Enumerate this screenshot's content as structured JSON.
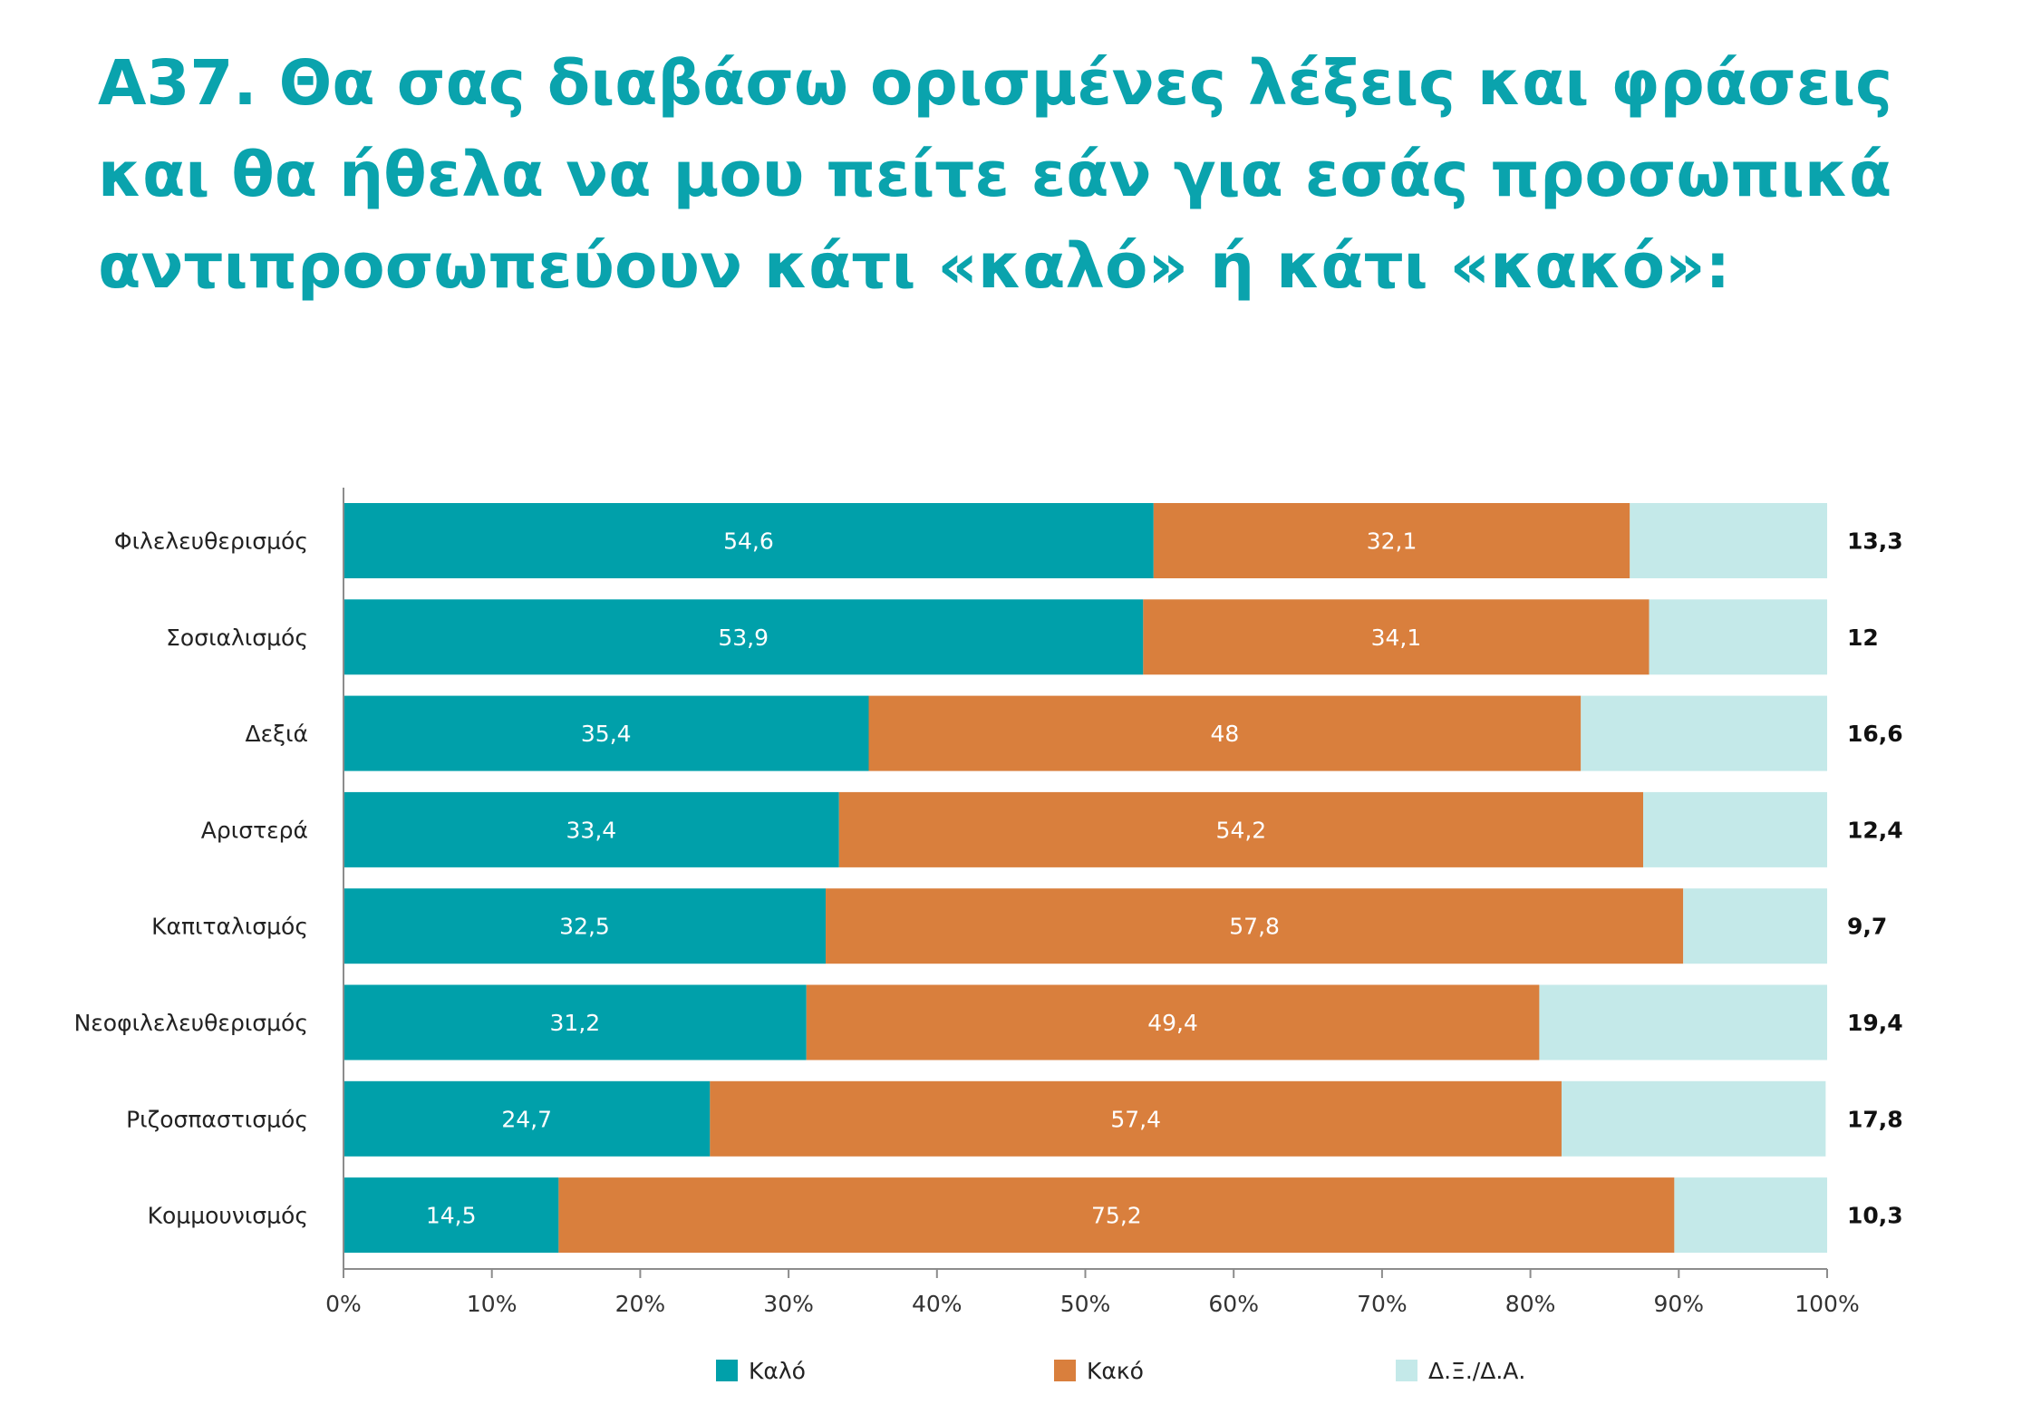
{
  "title_lines": [
    "Α37. Θα σας διαβάσω ορισμένες λέξεις και φράσεις",
    "και θα ήθελα να μου πείτε εάν για εσάς προσωπικά",
    "αντιπροσωπεύουν κάτι «καλό» ή κάτι «κακό»:"
  ],
  "colors": {
    "title": "#0aa3ad",
    "good": "#00a0aa",
    "bad": "#d97f3d",
    "dk": "#c4e9e9"
  },
  "chart_data": {
    "type": "bar",
    "orientation": "horizontal",
    "stacked": true,
    "categories": [
      "Φιλελευθερισμός",
      "Σοσιαλισμός",
      "Δεξιά",
      "Αριστερά",
      "Καπιταλισμός",
      "Νεοφιλελευθερισμός",
      "Ριζοσπαστισμός",
      "Κομμουνισμός"
    ],
    "series": [
      {
        "name": "Καλό",
        "values": [
          54.6,
          53.9,
          35.4,
          33.4,
          32.5,
          31.2,
          24.7,
          14.5
        ],
        "labels": [
          "54,6",
          "53,9",
          "35,4",
          "33,4",
          "32,5",
          "31,2",
          "24,7",
          "14,5"
        ],
        "color": "#00a0aa"
      },
      {
        "name": "Κακό",
        "values": [
          32.1,
          34.1,
          48,
          54.2,
          57.8,
          49.4,
          57.4,
          75.2
        ],
        "labels": [
          "32,1",
          "34,1",
          "48",
          "54,2",
          "57,8",
          "49,4",
          "57,4",
          "75,2"
        ],
        "color": "#d97f3d"
      },
      {
        "name": "Δ.Ξ./Δ.Α.",
        "values": [
          13.3,
          12,
          16.6,
          12.4,
          9.7,
          19.4,
          17.8,
          10.3
        ],
        "labels": [
          "13,3",
          "12",
          "16,6",
          "12,4",
          "9,7",
          "19,4",
          "17,8",
          "10,3"
        ],
        "color": "#c4e9e9"
      }
    ],
    "xlim": [
      0,
      100
    ],
    "xticks": [
      "0%",
      "10%",
      "20%",
      "30%",
      "40%",
      "50%",
      "60%",
      "70%",
      "80%",
      "90%",
      "100%"
    ],
    "grid": false,
    "legend_position": "bottom"
  }
}
